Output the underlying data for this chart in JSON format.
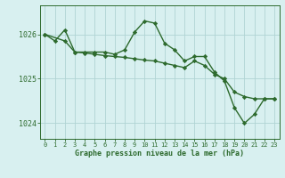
{
  "line1_x": [
    0,
    1,
    2,
    3,
    4,
    5,
    6,
    7,
    8,
    9,
    10,
    11,
    12,
    13,
    14,
    15,
    16,
    17,
    18,
    19,
    20,
    21,
    22,
    23
  ],
  "line1_y": [
    1026.0,
    1025.85,
    1026.1,
    1025.6,
    1025.6,
    1025.6,
    1025.6,
    1025.55,
    1025.65,
    1026.05,
    1026.3,
    1026.25,
    1025.8,
    1025.65,
    1025.4,
    1025.5,
    1025.5,
    1025.15,
    1024.95,
    1024.35,
    1024.0,
    1024.2,
    1024.55,
    1024.55
  ],
  "line2_x": [
    0,
    2,
    3,
    4,
    5,
    6,
    7,
    8,
    9,
    10,
    11,
    12,
    13,
    14,
    15,
    16,
    17,
    18,
    19,
    20,
    21,
    22,
    23
  ],
  "line2_y": [
    1026.0,
    1025.85,
    1025.6,
    1025.58,
    1025.55,
    1025.52,
    1025.5,
    1025.48,
    1025.45,
    1025.42,
    1025.4,
    1025.35,
    1025.3,
    1025.25,
    1025.4,
    1025.3,
    1025.1,
    1025.0,
    1024.7,
    1024.6,
    1024.55,
    1024.55,
    1024.55
  ],
  "line_color": "#2d6a2d",
  "bg_color": "#d8f0f0",
  "grid_color": "#b0d4d4",
  "axis_color": "#2d6a2d",
  "text_color": "#2d6a2d",
  "xlabel": "Graphe pression niveau de la mer (hPa)",
  "ylim": [
    1023.65,
    1026.65
  ],
  "yticks": [
    1024,
    1025,
    1026
  ],
  "xticks": [
    0,
    1,
    2,
    3,
    4,
    5,
    6,
    7,
    8,
    9,
    10,
    11,
    12,
    13,
    14,
    15,
    16,
    17,
    18,
    19,
    20,
    21,
    22,
    23
  ],
  "marker": "D",
  "markersize": 2.2,
  "linewidth": 1.0
}
